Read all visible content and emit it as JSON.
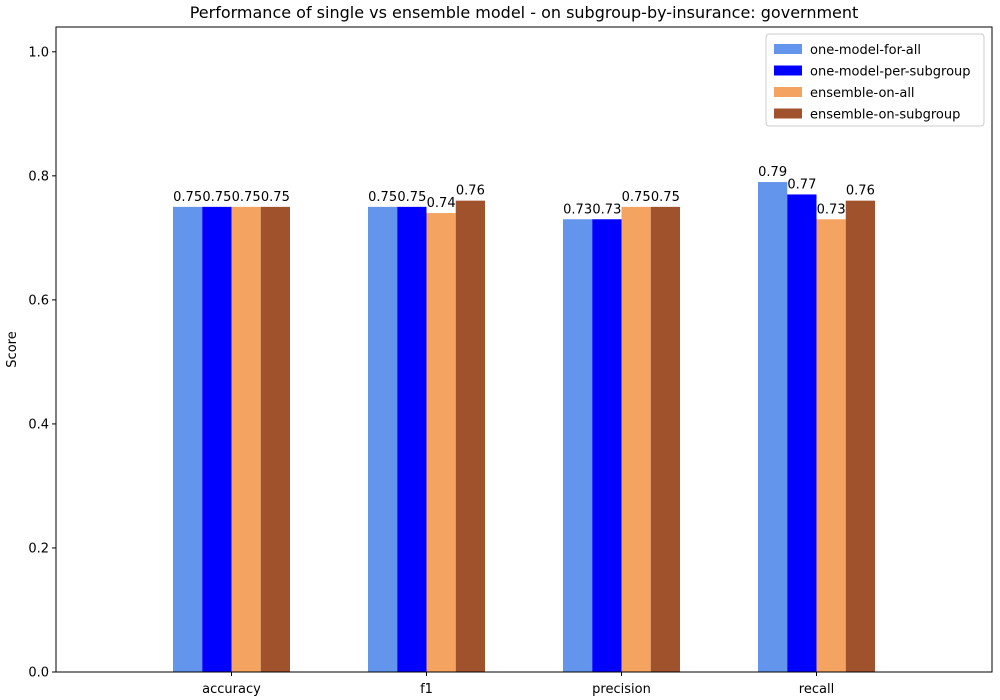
{
  "chart_data": {
    "type": "bar",
    "title": "Performance of single vs ensemble model - on subgroup-by-insurance: government",
    "xlabel": "",
    "ylabel": "Score",
    "ylim": [
      0,
      1.04
    ],
    "yticks": [
      "0.0",
      "0.2",
      "0.4",
      "0.6",
      "0.8",
      "1.0"
    ],
    "ytick_values": [
      0,
      0.2,
      0.4,
      0.6,
      0.8,
      1.0
    ],
    "categories": [
      "accuracy",
      "f1",
      "precision",
      "recall"
    ],
    "series": [
      {
        "name": "one-model-for-all",
        "color": "#6495ED",
        "values": [
          0.75,
          0.75,
          0.73,
          0.79
        ],
        "labels": [
          "0.75",
          "0.75",
          "0.73",
          "0.79"
        ]
      },
      {
        "name": "one-model-per-subgroup",
        "color": "#0000FF",
        "values": [
          0.75,
          0.75,
          0.73,
          0.77
        ],
        "labels": [
          "0.75",
          "0.75",
          "0.73",
          "0.77"
        ]
      },
      {
        "name": "ensemble-on-all",
        "color": "#F4A460",
        "values": [
          0.75,
          0.74,
          0.75,
          0.73
        ],
        "labels": [
          "0.75",
          "0.74",
          "0.75",
          "0.73"
        ]
      },
      {
        "name": "ensemble-on-subgroup",
        "color": "#A0522D",
        "values": [
          0.75,
          0.76,
          0.75,
          0.76
        ],
        "labels": [
          "0.75",
          "0.76",
          "0.75",
          "0.76"
        ]
      }
    ],
    "legend_position": "top-right",
    "grid": false
  }
}
